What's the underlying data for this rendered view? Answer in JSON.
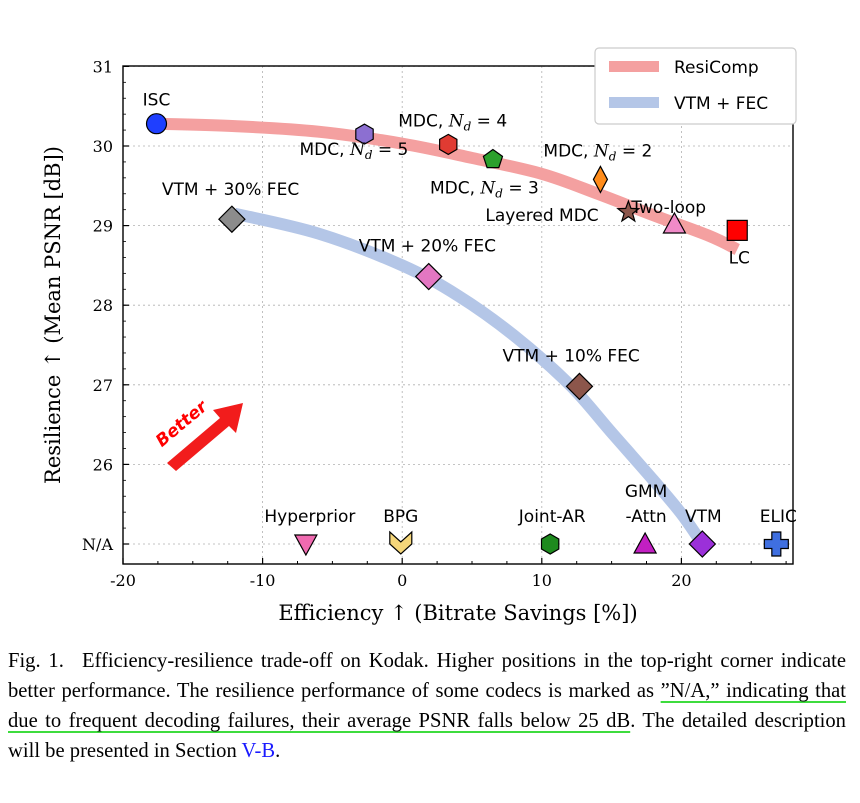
{
  "chart_data": {
    "type": "scatter",
    "xlabel": "Efficiency ↑ (Bitrate Savings [%])",
    "ylabel": "Resilience ↑ (Mean PSNR [dB])",
    "xlim": [
      -20,
      28
    ],
    "ylim": [
      24.75,
      31
    ],
    "x_ticks": [
      -20,
      -10,
      0,
      10,
      20
    ],
    "x_tick_labels": [
      "-20",
      "-10",
      "0",
      "10",
      "20"
    ],
    "y_ticks": [
      25,
      26,
      27,
      28,
      29,
      30,
      31
    ],
    "y_tick_labels": [
      "N/A",
      "26",
      "27",
      "28",
      "29",
      "30",
      "31"
    ],
    "grid": true,
    "legend_position": "top-right",
    "legend": [
      {
        "label": "ResiComp",
        "color": "#f4a0a0"
      },
      {
        "label": "VTM + FEC",
        "color": "#b4c6e7"
      }
    ],
    "curves": [
      {
        "name": "ResiComp",
        "color": "#f4a0a0",
        "x": [
          -17.5,
          -12,
          -6,
          0,
          5,
          10,
          14,
          18,
          22,
          24
        ],
        "y": [
          30.28,
          30.25,
          30.18,
          30.03,
          29.85,
          29.65,
          29.4,
          29.13,
          28.87,
          28.7
        ]
      },
      {
        "name": "VTM + FEC",
        "color": "#b4c6e7",
        "x": [
          -12,
          -6,
          0,
          4,
          8,
          12,
          15,
          18,
          20,
          21.5
        ],
        "y": [
          29.15,
          28.9,
          28.5,
          28.12,
          27.62,
          27.0,
          26.4,
          25.8,
          25.38,
          25.0
        ]
      }
    ],
    "points": [
      {
        "label": "ISC",
        "x": -17.6,
        "y": 30.28,
        "marker": "circle",
        "color": "#1f3fff"
      },
      {
        "label": "MDC, N_d = 5",
        "x": -2.7,
        "y": 30.15,
        "marker": "hexagon",
        "color": "#8c6fd1"
      },
      {
        "label": "MDC, N_d = 4",
        "x": 3.3,
        "y": 30.02,
        "marker": "hexagon",
        "color": "#e03b32"
      },
      {
        "label": "MDC, N_d = 3",
        "x": 6.5,
        "y": 29.83,
        "marker": "pentagon",
        "color": "#2ca02c"
      },
      {
        "label": "MDC, N_d = 2",
        "x": 14.2,
        "y": 29.58,
        "marker": "thin-diamond",
        "color": "#ff8c1a"
      },
      {
        "label": "Layered MDC",
        "x": 16.2,
        "y": 29.17,
        "marker": "star",
        "color": "#8c564b"
      },
      {
        "label": "Two-loop",
        "x": 19.5,
        "y": 29.02,
        "marker": "triangle-up",
        "color": "#f08ac8"
      },
      {
        "label": "LC",
        "x": 24.0,
        "y": 28.94,
        "marker": "square",
        "color": "#ff0000"
      },
      {
        "label": "VTM + 30% FEC",
        "x": -12.2,
        "y": 29.08,
        "marker": "diamond",
        "color": "#8c8c8c"
      },
      {
        "label": "VTM + 20% FEC",
        "x": 1.9,
        "y": 28.36,
        "marker": "diamond",
        "color": "#e377c2"
      },
      {
        "label": "VTM + 10% FEC",
        "x": 12.7,
        "y": 26.98,
        "marker": "diamond",
        "color": "#8c564b"
      },
      {
        "label": "Hyperprior",
        "x": -6.9,
        "y": 25.0,
        "marker": "triangle-down",
        "color": "#f06ab0"
      },
      {
        "label": "BPG",
        "x": -0.1,
        "y": 25.0,
        "marker": "chevron-down",
        "color": "#f5d67a"
      },
      {
        "label": "Joint-AR",
        "x": 10.6,
        "y": 25.0,
        "marker": "hexagon",
        "color": "#1e8a1e"
      },
      {
        "label": "GMM -Attn",
        "x": 17.4,
        "y": 25.0,
        "marker": "triangle-up",
        "color": "#c21fc2"
      },
      {
        "label": "VTM",
        "x": 21.5,
        "y": 25.0,
        "marker": "diamond",
        "color": "#9b30d9"
      },
      {
        "label": "ELIC",
        "x": 26.8,
        "y": 25.0,
        "marker": "plus",
        "color": "#3f6fe0"
      }
    ],
    "annotation": {
      "text": "Better",
      "color": "#ff0000"
    }
  },
  "caption": {
    "prefix": "Fig. 1.  Efficiency-resilience trade-off on Kodak. Higher positions in the top-right corner indicate better performance. The resilience performance of some codecs is marked as ",
    "underlined": "”N/A,” indicating that due to frequent decoding failures, their average PSNR falls below 25 dB",
    "middle": ". The detailed description will be presented in Section ",
    "link": "V-B",
    "suffix": "."
  }
}
